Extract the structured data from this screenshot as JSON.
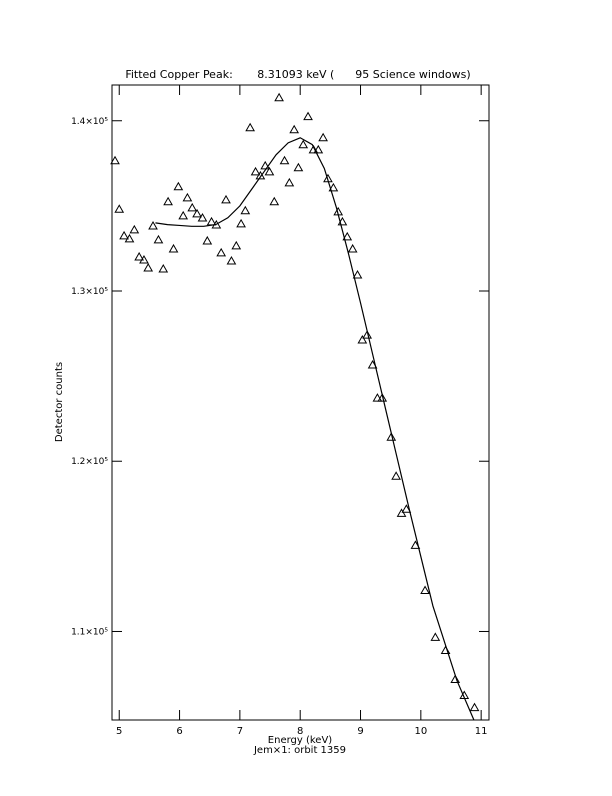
{
  "chart_data": {
    "type": "combo",
    "title": "Fitted Copper Peak:       8.31093 keV (      95 Science windows)",
    "x_label": "Energy (keV)",
    "subtitle": "Jem×1: orbit 1359",
    "y_label": "Detector counts",
    "xlim": [
      4.88,
      11.13
    ],
    "xticks": [
      5,
      6,
      7,
      8,
      9,
      10,
      11
    ],
    "ylim": [
      104800,
      142100
    ],
    "yticks": [
      {
        "value": 110000,
        "label": "1.1×10⁵"
      },
      {
        "value": 120000,
        "label": "1.2×10⁵"
      },
      {
        "value": 130000,
        "label": "1.3×10⁵"
      },
      {
        "value": 140000,
        "label": "1.4×10⁵"
      }
    ],
    "series": [
      {
        "type": "scatter",
        "color": "#000000",
        "x": [
          4.93,
          5.0,
          5.08,
          5.17,
          5.25,
          5.33,
          5.41,
          5.48,
          5.56,
          5.65,
          5.73,
          5.81,
          5.9,
          5.98,
          6.06,
          6.13,
          6.21,
          6.29,
          6.38,
          6.46,
          6.53,
          6.61,
          6.69,
          6.77,
          6.86,
          6.94,
          7.02,
          7.09,
          7.17,
          7.26,
          7.34,
          7.42,
          7.49,
          7.57,
          7.65,
          7.74,
          7.82,
          7.9,
          7.97,
          8.05,
          8.13,
          8.22,
          8.3,
          8.38,
          8.46,
          8.55,
          8.63,
          8.7,
          8.78,
          8.87,
          8.95,
          9.03,
          9.11,
          9.2,
          9.28,
          9.36,
          9.51,
          9.59,
          9.68,
          9.76,
          9.91,
          10.07,
          10.24,
          10.41,
          10.57,
          10.72,
          10.89
        ],
        "values": [
          137650,
          134800,
          133240,
          133060,
          133590,
          132000,
          131820,
          131350,
          133820,
          133000,
          131290,
          135240,
          132470,
          136120,
          134410,
          135470,
          134880,
          134530,
          134290,
          132940,
          134060,
          133880,
          132240,
          135350,
          131760,
          132650,
          133940,
          134710,
          139590,
          137000,
          136760,
          137350,
          137000,
          135240,
          141350,
          137650,
          136350,
          139470,
          137240,
          138590,
          140240,
          138290,
          138290,
          139000,
          136590,
          136060,
          134650,
          134060,
          133180,
          132470,
          130940,
          127120,
          127410,
          125650,
          123710,
          123710,
          121410,
          119120,
          116940,
          117180,
          115060,
          112410,
          109650,
          108880,
          107180,
          106240,
          105530
        ]
      },
      {
        "type": "line",
        "color": "#000000",
        "x": [
          5.6,
          5.8,
          6.0,
          6.2,
          6.4,
          6.6,
          6.8,
          7.0,
          7.2,
          7.4,
          7.6,
          7.8,
          8.0,
          8.2,
          8.4,
          8.6,
          8.8,
          9.0,
          9.2,
          9.4,
          9.6,
          9.8,
          10.0,
          10.2,
          10.4,
          10.6,
          10.88
        ],
        "values": [
          134000,
          133900,
          133850,
          133800,
          133800,
          133900,
          134300,
          135000,
          136000,
          137000,
          138000,
          138700,
          139000,
          138600,
          137200,
          134900,
          132200,
          129300,
          126300,
          123300,
          120300,
          117300,
          114400,
          111500,
          109300,
          107100,
          104800
        ]
      }
    ]
  }
}
